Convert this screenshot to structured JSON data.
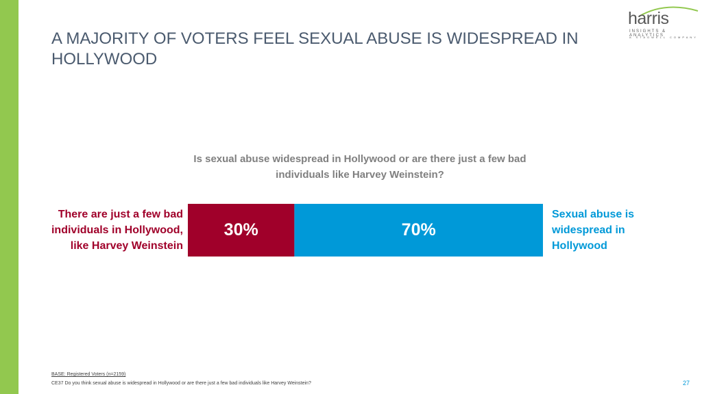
{
  "chart_data": {
    "type": "stacked-bar",
    "title": "A MAJORITY OF VOTERS FEEL SEXUAL ABUSE IS WIDESPREAD IN HOLLYWOOD",
    "subtitle": "Is sexual abuse widespread in Hollywood or are there just a few bad individuals like Harvey Weinstein?",
    "series": [
      {
        "name": "There are just a few bad individuals in Hollywood, like Harvey Weinstein",
        "color": "#a0002a",
        "values": [
          30
        ],
        "value_labels": [
          "30%"
        ]
      },
      {
        "name": "Sexual abuse is widespread in Hollywood",
        "color": "#0099d8",
        "values": [
          70
        ],
        "value_labels": [
          "70%"
        ]
      }
    ]
  },
  "logo": {
    "name": "harris",
    "tagline": "INSIGHTS & ANALYTICS",
    "parent": "A STAGWELL COMPANY"
  },
  "footer": {
    "base": "BASE: Registered Voters (n=2159)",
    "question": "CE37 Do you think sexual abuse is widespread in Hollywood or are there just a few bad individuals like Harvey Weinstein?",
    "page_number": "27"
  }
}
